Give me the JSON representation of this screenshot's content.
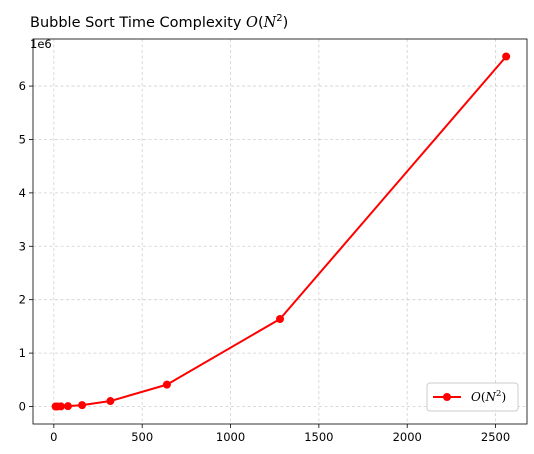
{
  "title": {
    "prefix": "Bubble Sort Time Complexity ",
    "math_var": "O",
    "math_open": "(",
    "math_base": "N",
    "math_exp": "2",
    "math_close": ")"
  },
  "chart_data": {
    "type": "line",
    "title": "Bubble Sort Time Complexity O(N^2)",
    "xlabel": "",
    "ylabel": "",
    "x": [
      10,
      20,
      40,
      80,
      160,
      320,
      640,
      1280,
      2560
    ],
    "series": [
      {
        "name": "O(N^2)",
        "color": "#ff0000",
        "marker": "circle",
        "values": [
          100,
          400,
          1600,
          6400,
          25600,
          102400,
          409600,
          1638400,
          6553600
        ]
      }
    ],
    "xlim": [
      -118,
      2678
    ],
    "ylim": [
      -327675,
      6881275
    ],
    "xticks": [
      0,
      500,
      1000,
      1500,
      2000,
      2500
    ],
    "yticks": [
      0,
      1000000,
      2000000,
      3000000,
      4000000,
      5000000,
      6000000
    ],
    "xtick_labels": [
      "0",
      "500",
      "1000",
      "1500",
      "2000",
      "2500"
    ],
    "ytick_labels": [
      "0",
      "1",
      "2",
      "3",
      "4",
      "5",
      "6"
    ],
    "y_offset_label": "1e6",
    "grid": true,
    "legend_position": "lower right"
  },
  "legend": {
    "var": "O",
    "open": "(",
    "base": "N",
    "exp": "2",
    "close": ")"
  }
}
